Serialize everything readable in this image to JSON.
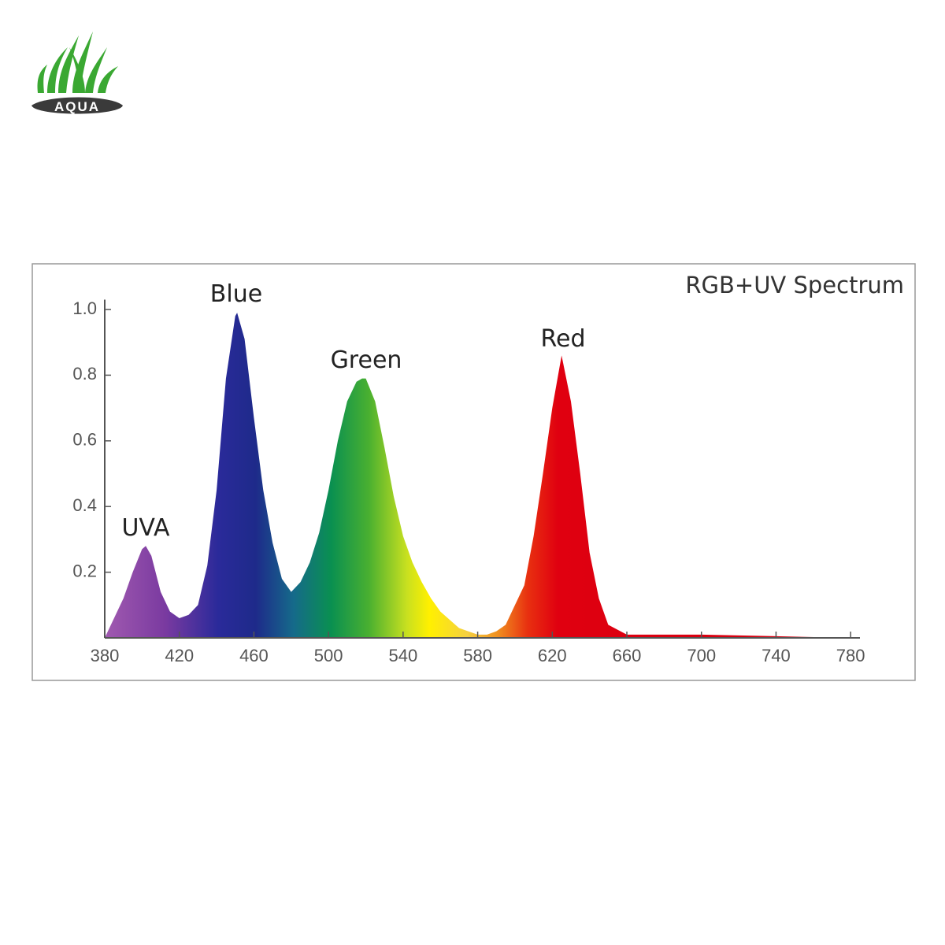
{
  "logo": {
    "text": "AQUA"
  },
  "chart_data": {
    "type": "area",
    "title": "RGB+UV Spectrum",
    "annotations": [
      "UVA",
      "Blue",
      "Green",
      "Red"
    ],
    "x": [
      380,
      390,
      395,
      400,
      402,
      405,
      410,
      415,
      420,
      425,
      430,
      435,
      440,
      445,
      450,
      451,
      455,
      460,
      465,
      470,
      475,
      480,
      485,
      490,
      495,
      500,
      505,
      510,
      515,
      518,
      520,
      525,
      530,
      535,
      540,
      545,
      550,
      555,
      560,
      570,
      580,
      585,
      590,
      595,
      600,
      605,
      610,
      615,
      620,
      625,
      630,
      635,
      640,
      645,
      650,
      660,
      700,
      740,
      780
    ],
    "y": [
      0.0,
      0.12,
      0.2,
      0.27,
      0.28,
      0.25,
      0.14,
      0.08,
      0.06,
      0.07,
      0.1,
      0.22,
      0.45,
      0.79,
      0.98,
      0.99,
      0.91,
      0.67,
      0.45,
      0.29,
      0.18,
      0.14,
      0.17,
      0.23,
      0.32,
      0.45,
      0.6,
      0.72,
      0.78,
      0.79,
      0.79,
      0.72,
      0.58,
      0.43,
      0.31,
      0.23,
      0.17,
      0.12,
      0.08,
      0.03,
      0.01,
      0.01,
      0.02,
      0.04,
      0.1,
      0.16,
      0.31,
      0.5,
      0.7,
      0.86,
      0.72,
      0.5,
      0.26,
      0.12,
      0.04,
      0.01,
      0.01,
      0.005,
      0.0
    ],
    "xlim": [
      380,
      785
    ],
    "xticks": [
      380,
      420,
      460,
      500,
      540,
      580,
      620,
      660,
      700,
      740,
      780
    ],
    "ylim": [
      0,
      1.03
    ],
    "yticks": [
      0.2,
      0.4,
      0.6,
      0.8,
      {
        "value": 1.0,
        "label": "1.0"
      }
    ]
  }
}
